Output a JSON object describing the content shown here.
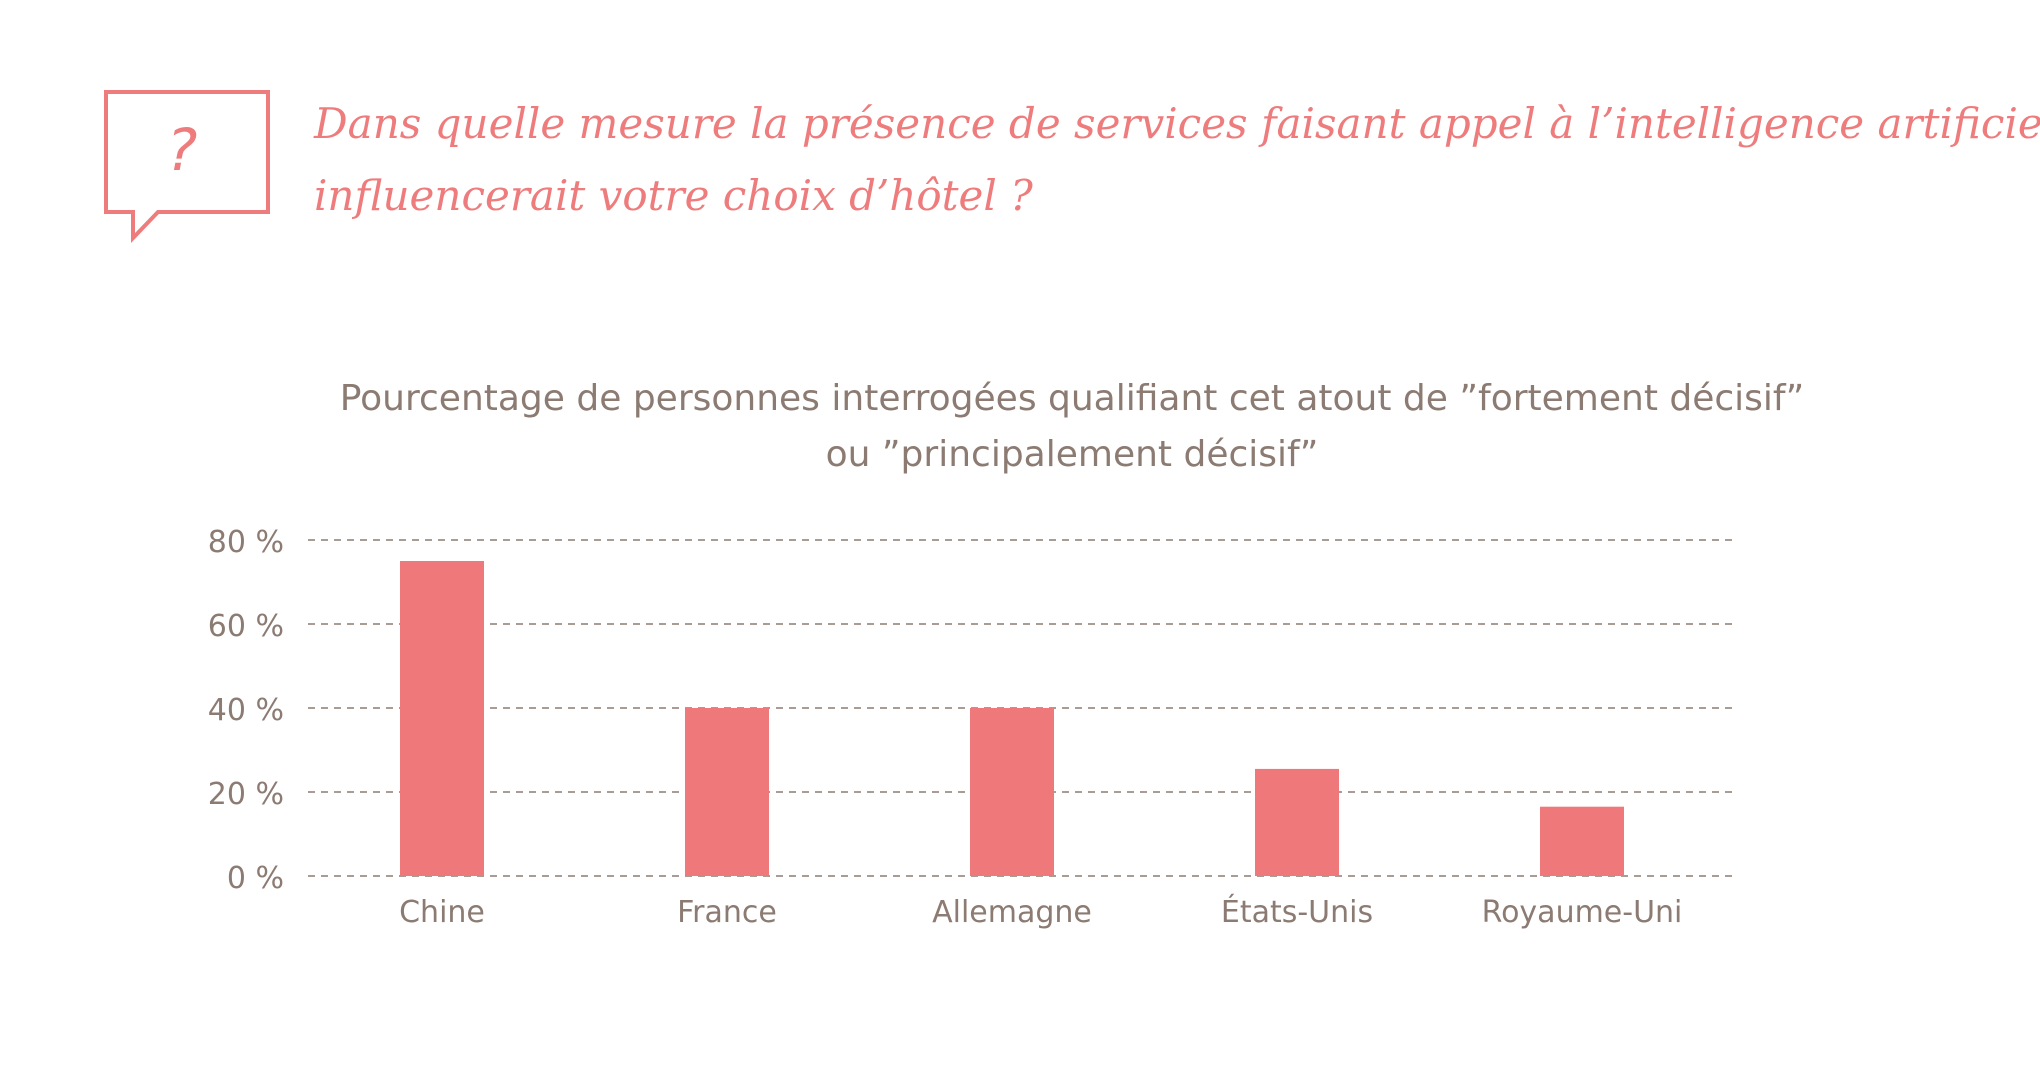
{
  "question": {
    "line1": "Dans quelle mesure la présence de services faisant appel à l’intelligence artificielle",
    "line2": "influencerait votre choix d’hôtel ?",
    "icon": "question-bubble-icon",
    "icon_glyph": "?"
  },
  "colors": {
    "accent": "#ee7c7d",
    "bar": "#ef787b",
    "text": "#8c7b72",
    "grid": "#8c7b72"
  },
  "chart_data": {
    "type": "bar",
    "title_lines": [
      "Pourcentage de personnes interrogées qualifiant cet atout de ”fortement décisif”",
      "ou ”principalement décisif”"
    ],
    "categories": [
      "Chine",
      "France",
      "Allemagne",
      "États-Unis",
      "Royaume-Uni"
    ],
    "values": [
      75,
      40,
      40,
      25.5,
      16.5
    ],
    "ylim": [
      0,
      80
    ],
    "yticks": [
      0,
      20,
      40,
      60,
      80
    ],
    "ytick_labels": [
      "0 %",
      "20 %",
      "40 %",
      "60 %",
      "80 %"
    ],
    "grid": true,
    "grid_style": "dashed"
  }
}
